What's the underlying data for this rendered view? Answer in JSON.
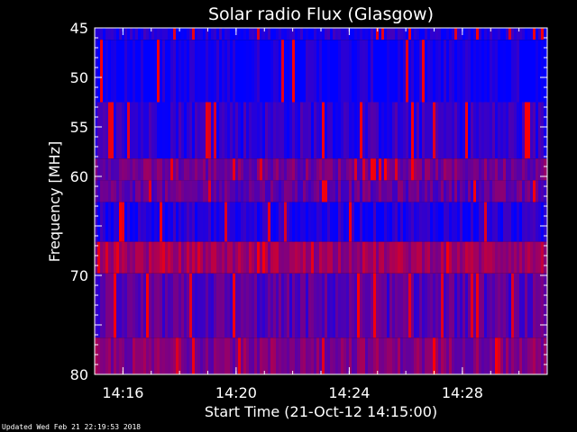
{
  "chart_data": {
    "type": "heatmap",
    "title": "Solar radio Flux (Glasgow)",
    "xlabel": "Start Time (21-Oct-12 14:15:00)",
    "ylabel": "Frequency [MHz]",
    "x_range": [
      "14:15",
      "14:31"
    ],
    "y_range": [
      45,
      80
    ],
    "y_ticks": [
      45,
      50,
      55,
      60,
      65,
      70,
      75,
      80
    ],
    "y_tick_labels": [
      "45",
      "50",
      "55",
      "60",
      "",
      "70",
      "",
      "80"
    ],
    "x_ticks": [
      "14:16",
      "14:20",
      "14:24",
      "14:28"
    ],
    "bands": [
      {
        "from": 45,
        "to": 46.2,
        "level": 0.1
      },
      {
        "from": 46.2,
        "to": 52.5,
        "level": 0.05
      },
      {
        "from": 52.5,
        "to": 58.2,
        "level": 0.18
      },
      {
        "from": 58.2,
        "to": 60.4,
        "level": 0.45
      },
      {
        "from": 60.4,
        "to": 62.6,
        "level": 0.38
      },
      {
        "from": 62.6,
        "to": 66.6,
        "level": 0.12
      },
      {
        "from": 66.6,
        "to": 69.8,
        "level": 0.62
      },
      {
        "from": 69.8,
        "to": 76.3,
        "level": 0.32
      },
      {
        "from": 76.3,
        "to": 80,
        "level": 0.5
      }
    ],
    "colors": {
      "low": "#0000ff",
      "high": "#ff0000",
      "axis": "#ffffff"
    }
  },
  "footer": "Updated Wed Feb 21 22:19:53 2018"
}
